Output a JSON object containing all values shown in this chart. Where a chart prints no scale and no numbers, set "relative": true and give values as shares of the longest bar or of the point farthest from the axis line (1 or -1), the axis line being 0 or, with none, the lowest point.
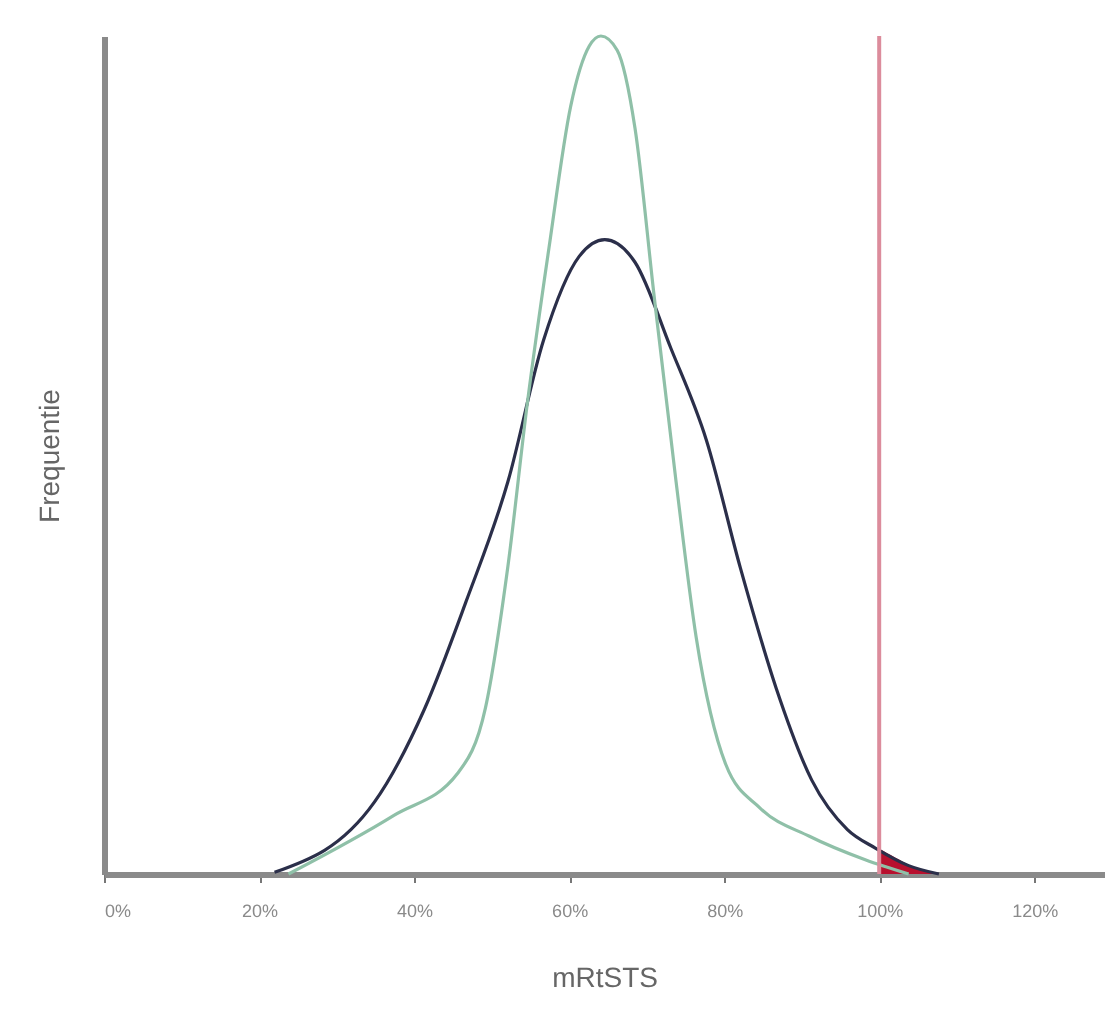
{
  "chart_data": {
    "type": "line",
    "relative": true,
    "xlabel": "mRtSTS",
    "ylabel": "Frequentie",
    "xlim": [
      0,
      129
    ],
    "xticks": [
      {
        "value": 0,
        "label": "0%"
      },
      {
        "value": 20,
        "label": "20%"
      },
      {
        "value": 40,
        "label": "40%"
      },
      {
        "value": 60,
        "label": "60%"
      },
      {
        "value": 80,
        "label": "80%"
      },
      {
        "value": 100,
        "label": "100%"
      },
      {
        "value": 120,
        "label": "120%"
      }
    ],
    "grid": false,
    "marker": "none",
    "line_style": "solid",
    "series": [
      {
        "type": "area",
        "color": "#b8102e",
        "x": [
          100,
          101,
          102,
          103,
          104,
          105,
          106,
          107,
          107.7
        ],
        "values": [
          0.03,
          0.025,
          0.02,
          0.015,
          0.01,
          0.007,
          0.004,
          0.002,
          0
        ]
      },
      {
        "color": "#2b2f4a",
        "x": [
          22,
          34.9,
          41.3,
          46.7,
          52.1,
          56.7,
          61.3,
          64.6,
          68.5,
          73.1,
          77.7,
          82.1,
          86.7,
          91.3,
          95.9,
          99.5,
          103.8,
          107.7
        ],
        "values": [
          0.002,
          0.086,
          0.196,
          0.325,
          0.468,
          0.637,
          0.737,
          0.757,
          0.73,
          0.628,
          0.518,
          0.365,
          0.222,
          0.112,
          0.053,
          0.031,
          0.01,
          0
        ]
      },
      {
        "color": "#8fc0a8",
        "x": [
          23.8,
          37.4,
          45.6,
          49.2,
          52.1,
          54.6,
          57.4,
          60.2,
          62.6,
          64.1,
          66.2,
          68.5,
          71,
          73.8,
          76.4,
          80.2,
          84.6,
          91,
          98.2,
          103.8
        ],
        "values": [
          0,
          0.07,
          0.12,
          0.198,
          0.367,
          0.561,
          0.747,
          0.916,
          0.988,
          1,
          0.983,
          0.89,
          0.687,
          0.468,
          0.282,
          0.131,
          0.079,
          0.045,
          0.017,
          0
        ]
      }
    ],
    "ref_lines": [
      {
        "axis": "x",
        "value": 100,
        "color": "#dc8c9c"
      }
    ]
  }
}
